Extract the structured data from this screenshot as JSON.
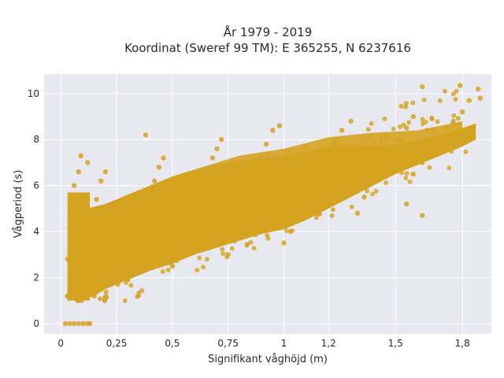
{
  "chart_data": {
    "type": "scatter",
    "title_lines": [
      "År 1979 - 2019",
      "Koordinat (Sweref 99 TM): E 365255, N 6237616"
    ],
    "xlabel": "Signifikant våghöjd (m)",
    "ylabel": "Vågperiod (s)",
    "xlim": [
      -0.075,
      1.93
    ],
    "ylim": [
      -0.45,
      10.85
    ],
    "x_ticks": [
      {
        "value": 0,
        "label": "0"
      },
      {
        "value": 0.25,
        "label": "0,25"
      },
      {
        "value": 0.5,
        "label": "0,5"
      },
      {
        "value": 0.75,
        "label": "0,75"
      },
      {
        "value": 1.0,
        "label": "1"
      },
      {
        "value": 1.2,
        "label": "1,2"
      },
      {
        "value": 1.5,
        "label": "1,5"
      },
      {
        "value": 1.8,
        "label": "1,8"
      }
    ],
    "y_ticks": [
      {
        "value": 0,
        "label": "0"
      },
      {
        "value": 2,
        "label": "2"
      },
      {
        "value": 4,
        "label": "4"
      },
      {
        "value": 6,
        "label": "6"
      },
      {
        "value": 8,
        "label": "8"
      },
      {
        "value": 10,
        "label": "10"
      }
    ],
    "marker_color": "#d4a31f",
    "plot_bg": "#e8e8f1",
    "grid": true,
    "approx_points": [
      [
        0.02,
        0
      ],
      [
        0.04,
        0
      ],
      [
        0.06,
        0
      ],
      [
        0.08,
        0
      ],
      [
        0.1,
        0
      ],
      [
        0.12,
        0
      ],
      [
        0.13,
        0
      ],
      [
        0.03,
        1.2
      ],
      [
        0.05,
        1.4
      ],
      [
        0.08,
        1.7
      ],
      [
        0.1,
        2.1
      ],
      [
        0.03,
        2.8
      ],
      [
        0.05,
        3.5
      ],
      [
        0.06,
        4.5
      ],
      [
        0.04,
        5.2
      ],
      [
        0.06,
        6.0
      ],
      [
        0.08,
        6.6
      ],
      [
        0.09,
        7.3
      ],
      [
        0.12,
        7.0
      ],
      [
        0.07,
        1.1
      ],
      [
        0.09,
        1.3
      ],
      [
        0.11,
        1.6
      ],
      [
        0.13,
        1.8
      ],
      [
        0.15,
        1.2
      ],
      [
        0.18,
        1.5
      ],
      [
        0.2,
        1.9
      ],
      [
        0.22,
        2.3
      ],
      [
        0.1,
        3.0
      ],
      [
        0.12,
        3.8
      ],
      [
        0.14,
        4.6
      ],
      [
        0.16,
        5.4
      ],
      [
        0.18,
        6.2
      ],
      [
        0.2,
        6.6
      ],
      [
        0.22,
        5.0
      ],
      [
        0.24,
        4.2
      ],
      [
        0.26,
        3.2
      ],
      [
        0.28,
        2.6
      ],
      [
        0.3,
        1.9
      ],
      [
        0.32,
        2.4
      ],
      [
        0.34,
        3.0
      ],
      [
        0.36,
        3.8
      ],
      [
        0.38,
        4.6
      ],
      [
        0.4,
        5.4
      ],
      [
        0.42,
        6.2
      ],
      [
        0.44,
        6.8
      ],
      [
        0.38,
        8.2
      ],
      [
        0.46,
        7.2
      ],
      [
        0.5,
        2.5
      ],
      [
        0.52,
        3.1
      ],
      [
        0.55,
        3.7
      ],
      [
        0.58,
        4.5
      ],
      [
        0.6,
        5.2
      ],
      [
        0.62,
        6.0
      ],
      [
        0.65,
        6.6
      ],
      [
        0.68,
        7.2
      ],
      [
        0.7,
        7.6
      ],
      [
        0.72,
        8.0
      ],
      [
        0.75,
        3.0
      ],
      [
        0.78,
        3.6
      ],
      [
        0.8,
        4.3
      ],
      [
        0.83,
        5.0
      ],
      [
        0.86,
        5.8
      ],
      [
        0.88,
        6.6
      ],
      [
        0.9,
        7.2
      ],
      [
        0.92,
        7.8
      ],
      [
        0.95,
        8.4
      ],
      [
        0.98,
        8.6
      ],
      [
        1.0,
        3.5
      ],
      [
        1.03,
        4.0
      ],
      [
        1.06,
        4.7
      ],
      [
        1.1,
        5.4
      ],
      [
        1.13,
        6.1
      ],
      [
        1.16,
        6.8
      ],
      [
        1.2,
        7.4
      ],
      [
        1.23,
        7.9
      ],
      [
        1.26,
        8.4
      ],
      [
        1.3,
        8.8
      ],
      [
        1.33,
        4.8
      ],
      [
        1.36,
        5.5
      ],
      [
        1.4,
        6.2
      ],
      [
        1.44,
        6.8
      ],
      [
        1.48,
        7.2
      ],
      [
        1.5,
        7.6
      ],
      [
        1.52,
        8.0
      ],
      [
        1.55,
        8.5
      ],
      [
        1.58,
        9.0
      ],
      [
        1.62,
        10.3
      ],
      [
        1.58,
        6.5
      ],
      [
        1.62,
        7.0
      ],
      [
        1.65,
        7.4
      ],
      [
        1.68,
        7.8
      ],
      [
        1.7,
        8.1
      ],
      [
        1.73,
        8.5
      ],
      [
        1.76,
        8.8
      ],
      [
        1.8,
        9.2
      ],
      [
        1.83,
        9.7
      ],
      [
        1.88,
        9.8
      ],
      [
        1.87,
        10.2
      ],
      [
        1.79,
        10.35
      ],
      [
        1.62,
        4.7
      ],
      [
        1.55,
        5.2
      ]
    ]
  }
}
